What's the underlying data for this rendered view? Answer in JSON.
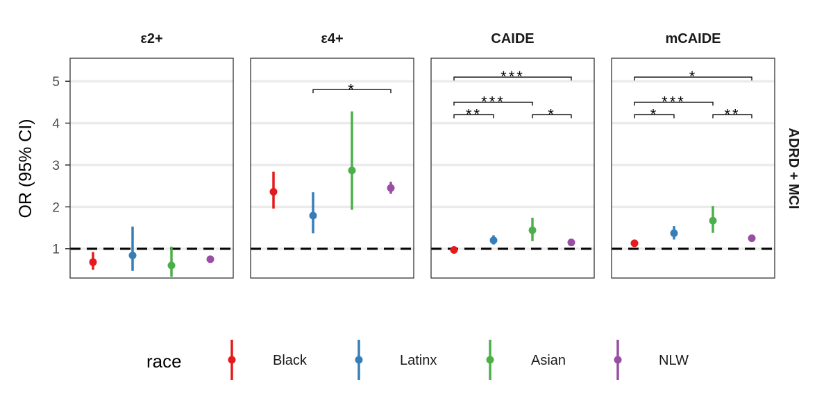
{
  "chart_data": {
    "type": "scatter",
    "subtype": "point-range facets",
    "ylabel": "OR (95% CI)",
    "row_label": "ADRD + MCI",
    "ylim": [
      0.3,
      5.55
    ],
    "yticks": [
      1,
      2,
      3,
      4,
      5
    ],
    "grid": "horizontal",
    "reference_line": {
      "y": 1,
      "style": "dashed"
    },
    "legend": {
      "title": "race",
      "position": "bottom",
      "entries": [
        "Black",
        "Latinx",
        "Asian",
        "NLW"
      ]
    },
    "colors": {
      "Black": "#e41a1c",
      "Latinx": "#377eb8",
      "Asian": "#4daf4a",
      "NLW": "#984ea3"
    },
    "groups": [
      "Black",
      "Latinx",
      "Asian",
      "NLW"
    ],
    "panels": [
      {
        "title": "ε2+",
        "points": [
          {
            "group": "Black",
            "or": 0.68,
            "lo": 0.5,
            "hi": 0.92
          },
          {
            "group": "Latinx",
            "or": 0.84,
            "lo": 0.47,
            "hi": 1.53
          },
          {
            "group": "Asian",
            "or": 0.6,
            "lo": 0.33,
            "hi": 1.05
          },
          {
            "group": "NLW",
            "or": 0.75,
            "lo": 0.7,
            "hi": 0.81
          }
        ],
        "significance": []
      },
      {
        "title": "ε4+",
        "points": [
          {
            "group": "Black",
            "or": 2.36,
            "lo": 1.96,
            "hi": 2.84
          },
          {
            "group": "Latinx",
            "or": 1.79,
            "lo": 1.37,
            "hi": 2.35
          },
          {
            "group": "Asian",
            "or": 2.87,
            "lo": 1.93,
            "hi": 4.28
          },
          {
            "group": "NLW",
            "or": 2.45,
            "lo": 2.31,
            "hi": 2.6
          }
        ],
        "significance": [
          {
            "from": 1,
            "to": 3,
            "y": 4.8,
            "label": "*"
          }
        ]
      },
      {
        "title": "CAIDE",
        "points": [
          {
            "group": "Black",
            "or": 0.97,
            "lo": 0.93,
            "hi": 1.02
          },
          {
            "group": "Latinx",
            "or": 1.2,
            "lo": 1.1,
            "hi": 1.32
          },
          {
            "group": "Asian",
            "or": 1.44,
            "lo": 1.18,
            "hi": 1.74
          },
          {
            "group": "NLW",
            "or": 1.15,
            "lo": 1.12,
            "hi": 1.18
          }
        ],
        "significance": [
          {
            "from": 0,
            "to": 1,
            "y": 4.2,
            "label": "**"
          },
          {
            "from": 0,
            "to": 2,
            "y": 4.5,
            "label": "***"
          },
          {
            "from": 2,
            "to": 3,
            "y": 4.2,
            "label": "*"
          },
          {
            "from": 0,
            "to": 3,
            "y": 5.1,
            "label": "***"
          }
        ]
      },
      {
        "title": "mCAIDE",
        "points": [
          {
            "group": "Black",
            "or": 1.13,
            "lo": 1.08,
            "hi": 1.19
          },
          {
            "group": "Latinx",
            "or": 1.37,
            "lo": 1.22,
            "hi": 1.54
          },
          {
            "group": "Asian",
            "or": 1.67,
            "lo": 1.38,
            "hi": 2.02
          },
          {
            "group": "NLW",
            "or": 1.25,
            "lo": 1.21,
            "hi": 1.29
          }
        ],
        "significance": [
          {
            "from": 0,
            "to": 1,
            "y": 4.2,
            "label": "*"
          },
          {
            "from": 0,
            "to": 2,
            "y": 4.5,
            "label": "***"
          },
          {
            "from": 2,
            "to": 3,
            "y": 4.2,
            "label": "**"
          },
          {
            "from": 0,
            "to": 3,
            "y": 5.1,
            "label": "*"
          }
        ]
      }
    ]
  }
}
